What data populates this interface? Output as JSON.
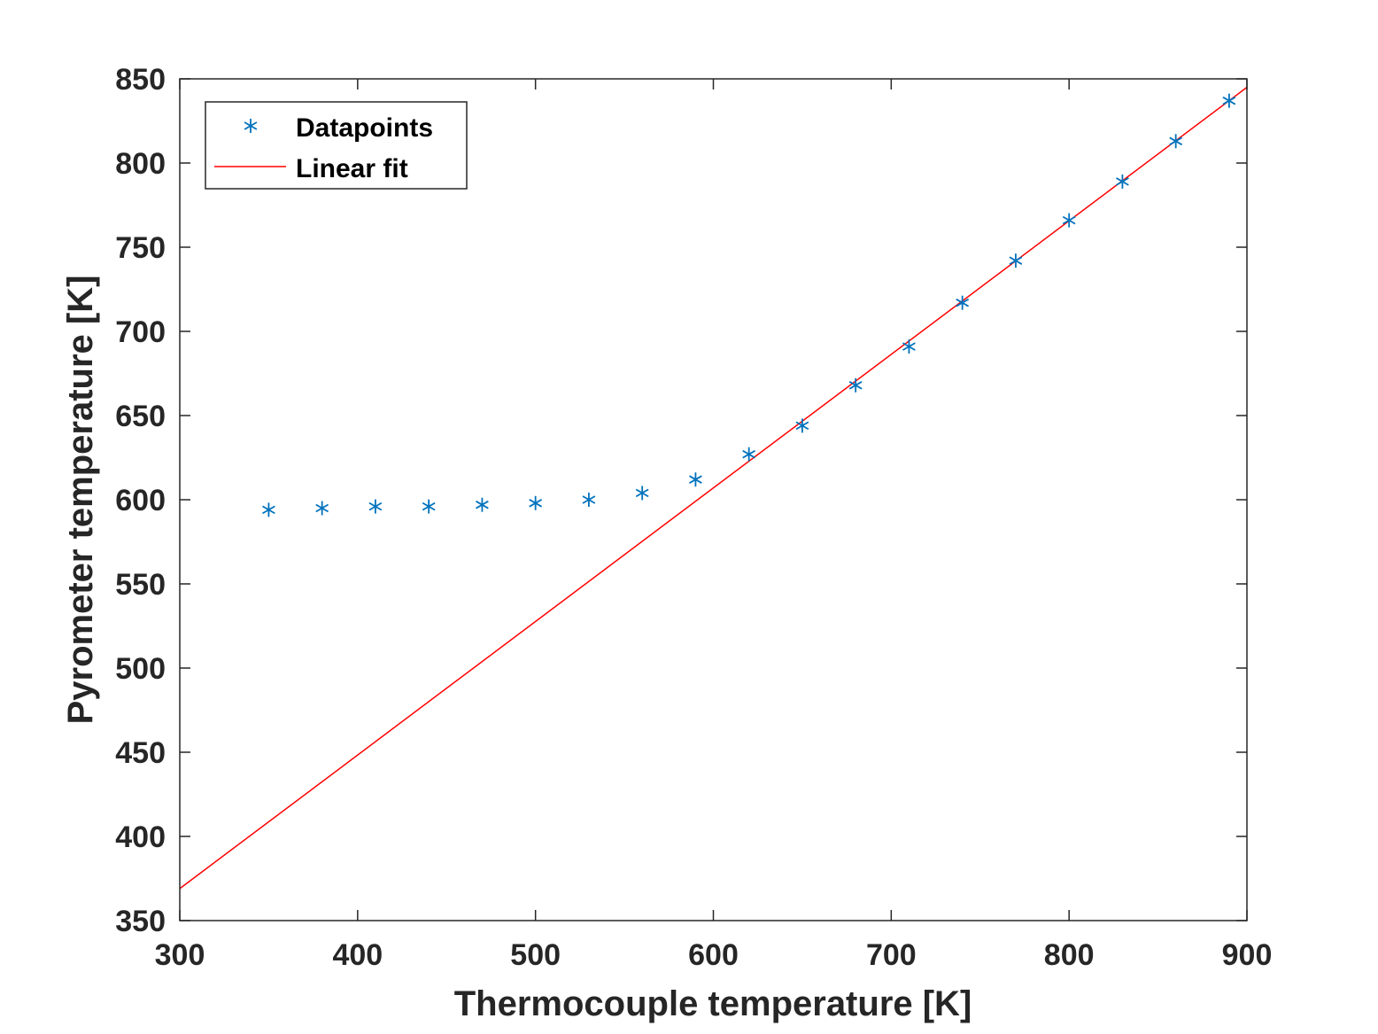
{
  "chart_data": {
    "type": "scatter",
    "xlabel": "Thermocouple temperature [K]",
    "ylabel": "Pyrometer temperature [K]",
    "xlim": [
      300,
      900
    ],
    "ylim": [
      350,
      850
    ],
    "xticks": [
      300,
      400,
      500,
      600,
      700,
      800,
      900
    ],
    "yticks": [
      350,
      400,
      450,
      500,
      550,
      600,
      650,
      700,
      750,
      800,
      850
    ],
    "xtick_labels": [
      "300",
      "400",
      "500",
      "600",
      "700",
      "800",
      "900"
    ],
    "ytick_labels": [
      "350",
      "400",
      "450",
      "500",
      "550",
      "600",
      "650",
      "700",
      "750",
      "800",
      "850"
    ],
    "grid": false,
    "legend_position": "top-left",
    "series": [
      {
        "name": "Datapoints",
        "kind": "markers",
        "marker": "asterisk",
        "color": "#0072BD",
        "x": [
          350,
          380,
          410,
          440,
          470,
          500,
          530,
          560,
          590,
          620,
          650,
          680,
          710,
          740,
          770,
          800,
          830,
          860,
          890
        ],
        "y": [
          594,
          595,
          596,
          596,
          597,
          598,
          600,
          604,
          612,
          627,
          644,
          668,
          691,
          717,
          742,
          766,
          789,
          813,
          837
        ]
      },
      {
        "name": "Linear fit",
        "kind": "line",
        "color": "#FF0000",
        "x": [
          300,
          900
        ],
        "y": [
          369,
          845
        ]
      }
    ]
  }
}
